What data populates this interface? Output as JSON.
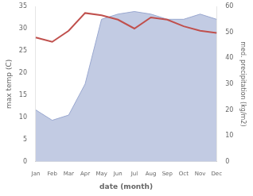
{
  "chart_data": {
    "type": "line",
    "categories": [
      "Jan",
      "Feb",
      "Mar",
      "Apr",
      "May",
      "Jun",
      "Jul",
      "Aug",
      "Sep",
      "Oct",
      "Nov",
      "Dec"
    ],
    "xlabel": "date (month)",
    "ylabel": "max temp (C)",
    "y2label": "med. precipitation (kg/m2)",
    "series": [
      {
        "type": "area",
        "axis": "y2",
        "color": "#9aa8d0",
        "values": [
          20.0,
          16.0,
          18.0,
          30.0,
          55.0,
          57.0,
          58.0,
          57.0,
          55.0,
          55.0,
          57.0,
          55.0
        ]
      },
      {
        "type": "line",
        "color": "#c0504d",
        "values": [
          28.0,
          27.0,
          29.5,
          33.5,
          33.0,
          32.0,
          30.0,
          32.5,
          32.0,
          30.5,
          29.5,
          29.0
        ]
      }
    ],
    "ylim": [
      0,
      35
    ],
    "yticks": [
      0,
      5,
      10,
      15,
      20,
      25,
      30,
      35
    ],
    "y2lim": [
      0,
      60
    ],
    "y2ticks": [
      0,
      10,
      20,
      30,
      40,
      50,
      60
    ],
    "grid": false
  }
}
